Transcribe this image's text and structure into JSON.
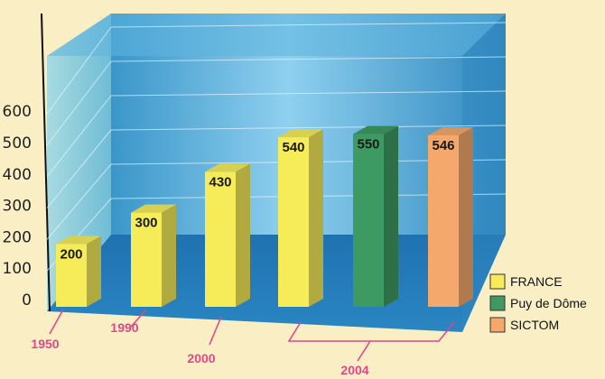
{
  "chart_data": {
    "type": "bar",
    "title": "",
    "xlabel": "",
    "ylabel": "",
    "ylim": [
      0,
      600
    ],
    "yticks": [
      0,
      100,
      200,
      300,
      400,
      500,
      600
    ],
    "grid": true,
    "legend_position": "bottom-right",
    "bars": [
      {
        "category": "1950",
        "series": "FRANCE",
        "value": 200,
        "label": "200"
      },
      {
        "category": "1990",
        "series": "FRANCE",
        "value": 300,
        "label": "300"
      },
      {
        "category": "2000",
        "series": "FRANCE",
        "value": 430,
        "label": "430"
      },
      {
        "category": "2004",
        "series": "FRANCE",
        "value": 540,
        "label": "540"
      },
      {
        "category": "2004",
        "series": "Puy de Dôme",
        "value": 550,
        "label": "550"
      },
      {
        "category": "2004",
        "series": "SICTOM",
        "value": 546,
        "label": "546"
      }
    ],
    "categories": [
      "1950",
      "1990",
      "2000",
      "2004"
    ],
    "series": [
      {
        "name": "FRANCE",
        "color": "#f6ec5a"
      },
      {
        "name": "Puy de Dôme",
        "color": "#3e9a63"
      },
      {
        "name": "SICTOM",
        "color": "#f4a86c"
      }
    ]
  },
  "colors": {
    "background": "#faefc4",
    "category_label": "#e0478a",
    "panel_blue": "#3f9ed2"
  }
}
